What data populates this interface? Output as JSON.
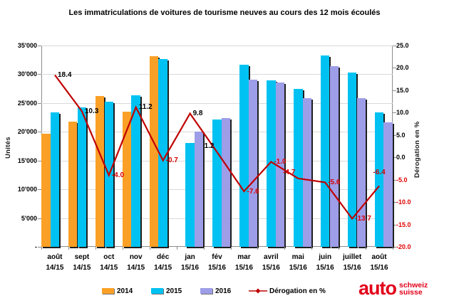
{
  "title": "Les immatriculations de voitures de tourisme neuves au cours des 12 mois écoulés",
  "left_axis": {
    "title": "Unités",
    "tick_labels": [
      "35'000",
      "30'000",
      "25'000",
      "20'000",
      "15'000",
      "10'000",
      "5'000",
      "-"
    ],
    "tick_values": [
      35000,
      30000,
      25000,
      20000,
      15000,
      10000,
      5000,
      0
    ]
  },
  "right_axis": {
    "title": "Dérogation en %",
    "tick_labels": [
      "25.0",
      "20.0",
      "15.0",
      "10.0",
      "5.0",
      "0.0",
      "-5.0",
      "-10.0",
      "-15.0",
      "-20.0"
    ],
    "tick_values": [
      25,
      20,
      15,
      10,
      5,
      0,
      -5,
      -10,
      -15,
      -20
    ]
  },
  "legend": [
    {
      "label": "2014",
      "color": "#FBA026",
      "type": "bar"
    },
    {
      "label": "2015",
      "color": "#00C2F2",
      "type": "bar"
    },
    {
      "label": "2016",
      "color": "#9D9DE8",
      "type": "bar"
    },
    {
      "label": "Dérogation en %",
      "color": "#C00000",
      "type": "line"
    }
  ],
  "logo": {
    "word": "auto",
    "line1": "schweiz",
    "line2": "suisse",
    "color": "#E2001A"
  },
  "colors": {
    "bar_2014": "#FBA026",
    "bar_2015": "#00C2F2",
    "bar_2016": "#9D9DE8",
    "line": "#C00000",
    "negative_text": "#D80000",
    "grid": "#D9D9D9",
    "axis": "#8C8C8C"
  },
  "chart_data": {
    "type": "bar",
    "subtype": "clustered bars with secondary-axis line",
    "title": "Les immatriculations de voitures de tourisme neuves au cours des 12 mois écoulés",
    "categories": [
      {
        "month": "août",
        "period": "14/15"
      },
      {
        "month": "sept",
        "period": "14/15"
      },
      {
        "month": "oct",
        "period": "14/15"
      },
      {
        "month": "nov",
        "period": "14/15"
      },
      {
        "month": "déc",
        "period": "14/15"
      },
      {
        "month": "jan",
        "period": "15/16"
      },
      {
        "month": "fév",
        "period": "15/16"
      },
      {
        "month": "mar",
        "period": "15/16"
      },
      {
        "month": "avril",
        "period": "15/16"
      },
      {
        "month": "mai",
        "period": "15/16"
      },
      {
        "month": "juin",
        "period": "15/16"
      },
      {
        "month": "juillet",
        "period": "15/16"
      },
      {
        "month": "août",
        "period": "15/16"
      }
    ],
    "series": [
      {
        "name": "2014",
        "type": "bar",
        "color": "#FBA026",
        "values": [
          19700,
          21800,
          26200,
          23500,
          33100,
          null,
          null,
          null,
          null,
          null,
          null,
          null,
          null
        ]
      },
      {
        "name": "2015",
        "type": "bar",
        "color": "#00C2F2",
        "values": [
          23400,
          24200,
          25200,
          26300,
          32700,
          18100,
          22100,
          31700,
          29000,
          27500,
          33300,
          30300,
          23400
        ]
      },
      {
        "name": "2016",
        "type": "bar",
        "color": "#9D9DE8",
        "values": [
          null,
          null,
          null,
          null,
          null,
          20100,
          22400,
          29100,
          28600,
          25900,
          31400,
          25800,
          21700
        ]
      },
      {
        "name": "Dérogation en %",
        "type": "line",
        "color": "#C00000",
        "axis": "right",
        "values": [
          18.4,
          10.3,
          -4.0,
          11.2,
          -0.7,
          9.8,
          1.2,
          -7.6,
          -1.0,
          -4.7,
          -5.6,
          -13.7,
          -6.4
        ],
        "label_sides": [
          "right",
          "right",
          "right",
          "right",
          "right",
          "right",
          "left",
          "right",
          "right",
          "left",
          "right",
          "right",
          "above"
        ]
      }
    ],
    "xlabel": "",
    "ylabel_left": "Unités",
    "ylabel_right": "Dérogation en %",
    "ylim_left": [
      0,
      35000
    ],
    "ylim_right": [
      -20,
      25
    ],
    "grid": true,
    "legend_position": "bottom"
  }
}
